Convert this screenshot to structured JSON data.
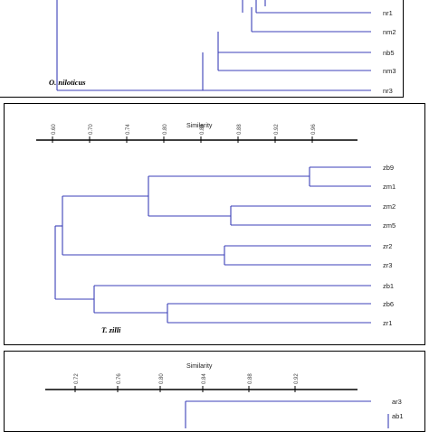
{
  "panels": [
    {
      "id": "o-niloticus",
      "species": "O. niloticus",
      "leaves": [
        "nr1",
        "nm2",
        "nb5",
        "nm3",
        "nr3"
      ]
    },
    {
      "id": "t-zilli",
      "species": "T. zilli",
      "axis_title": "Similarity",
      "ticks": [
        "0.60",
        "0.70",
        "0.74",
        "0.80",
        "0.84",
        "0.88",
        "0.92",
        "0.96"
      ],
      "leaves": [
        "zb9",
        "zm1",
        "zm2",
        "zm5",
        "zr2",
        "zr3",
        "zb1",
        "zb6",
        "zr1"
      ]
    },
    {
      "id": "third",
      "axis_title": "Similarity",
      "ticks": [
        "0.72",
        "0.76",
        "0.80",
        "0.84",
        "0.88",
        "0.92"
      ],
      "leaves": [
        "ar3",
        "ab1"
      ]
    }
  ],
  "colors": {
    "dendrogram_line": "#3b3fb8",
    "border": "#000000"
  }
}
